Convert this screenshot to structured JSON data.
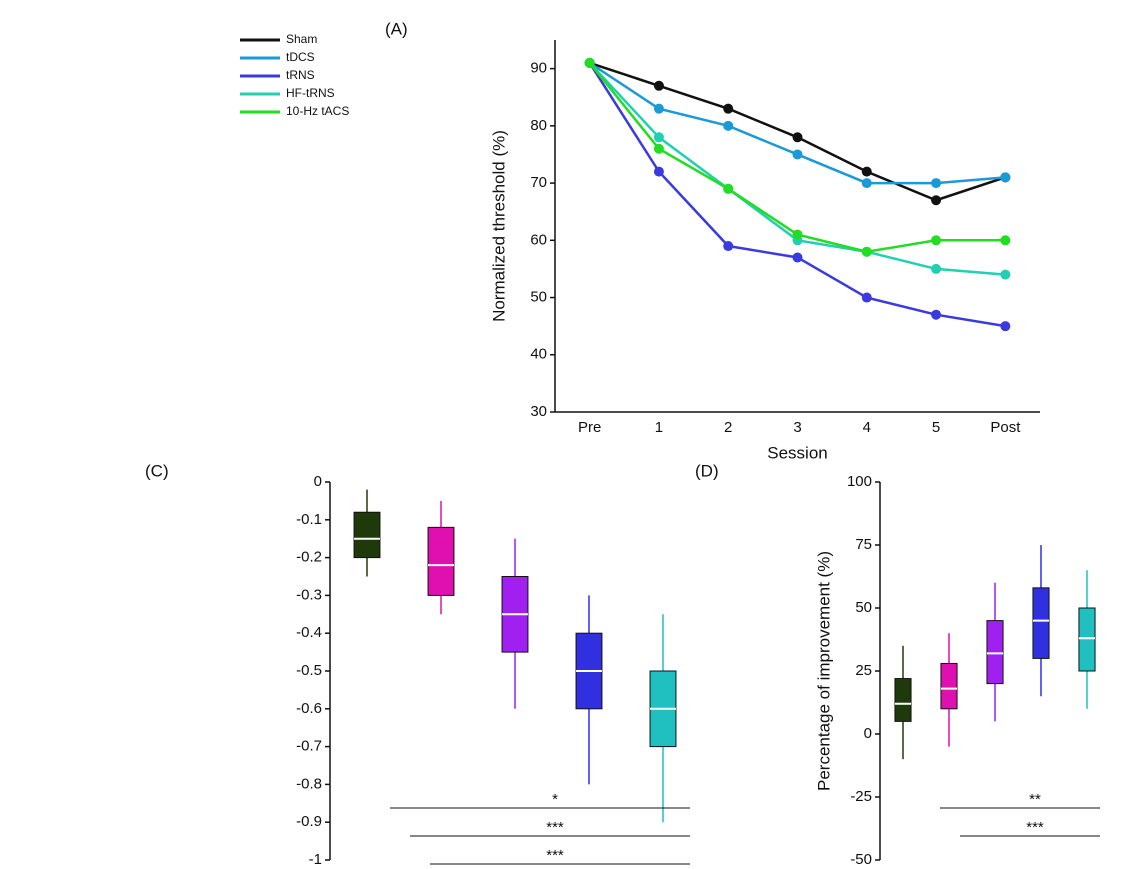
{
  "chart_data": [
    {
      "type": "line",
      "title": "(A)",
      "xlabel": "Session",
      "ylabel": "Normalized threshold (%)",
      "categories": [
        "Pre",
        "1",
        "2",
        "3",
        "4",
        "5",
        "Post"
      ],
      "ylim": [
        30,
        95
      ],
      "yticks": [
        30,
        40,
        50,
        60,
        70,
        80,
        90
      ],
      "series": [
        {
          "name": "Sham",
          "color": "#111111",
          "values": [
            91,
            87,
            83,
            78,
            72,
            67,
            71
          ]
        },
        {
          "name": "tDCS",
          "color": "#1a9ad6",
          "values": [
            91,
            83,
            80,
            75,
            70,
            70,
            71
          ]
        },
        {
          "name": "tRNS",
          "color": "#3a3ae0",
          "values": [
            91,
            72,
            59,
            57,
            50,
            47,
            45
          ]
        },
        {
          "name": "HF-tRNS",
          "color": "#20d0b0",
          "values": [
            91,
            78,
            69,
            60,
            58,
            55,
            54
          ]
        },
        {
          "name": "10-Hz tACS",
          "color": "#22dd22",
          "values": [
            91,
            76,
            69,
            61,
            58,
            60,
            60
          ]
        }
      ],
      "legend": "upper-left"
    },
    {
      "type": "box",
      "title": "(C)",
      "ylim": [
        -1,
        0
      ],
      "yticks": [
        0,
        -0.1,
        -0.2,
        -0.3,
        -0.4,
        -0.5,
        -0.6,
        -0.7,
        -0.8,
        -0.9,
        -1
      ],
      "boxes": [
        {
          "color": "#1f3a0a",
          "q1": -0.2,
          "median": -0.15,
          "q3": -0.08,
          "low": -0.25,
          "high": -0.02
        },
        {
          "color": "#e010b0",
          "q1": -0.3,
          "median": -0.22,
          "q3": -0.12,
          "low": -0.35,
          "high": -0.05
        },
        {
          "color": "#a020f0",
          "q1": -0.45,
          "median": -0.35,
          "q3": -0.25,
          "low": -0.6,
          "high": -0.15
        },
        {
          "color": "#3030e0",
          "q1": -0.6,
          "median": -0.5,
          "q3": -0.4,
          "low": -0.8,
          "high": -0.3
        },
        {
          "color": "#20c0c0",
          "q1": -0.7,
          "median": -0.6,
          "q3": -0.5,
          "low": -0.9,
          "high": -0.35
        }
      ],
      "annotations": [
        "*",
        "***",
        "***"
      ]
    },
    {
      "type": "box",
      "title": "(D)",
      "ylabel": "Percentage of improvement (%)",
      "ylim": [
        -50,
        100
      ],
      "yticks": [
        -50,
        -25,
        0,
        25,
        50,
        75,
        100
      ],
      "boxes": [
        {
          "color": "#1f3a0a",
          "q1": 5,
          "median": 12,
          "q3": 22,
          "low": -10,
          "high": 35
        },
        {
          "color": "#e010b0",
          "q1": 10,
          "median": 18,
          "q3": 28,
          "low": -5,
          "high": 40
        },
        {
          "color": "#a020f0",
          "q1": 20,
          "median": 32,
          "q3": 45,
          "low": 5,
          "high": 60
        },
        {
          "color": "#3030e0",
          "q1": 30,
          "median": 45,
          "q3": 58,
          "low": 15,
          "high": 75
        },
        {
          "color": "#20c0c0",
          "q1": 25,
          "median": 38,
          "q3": 50,
          "low": 10,
          "high": 65
        }
      ],
      "annotations": [
        "**",
        "***"
      ]
    }
  ]
}
